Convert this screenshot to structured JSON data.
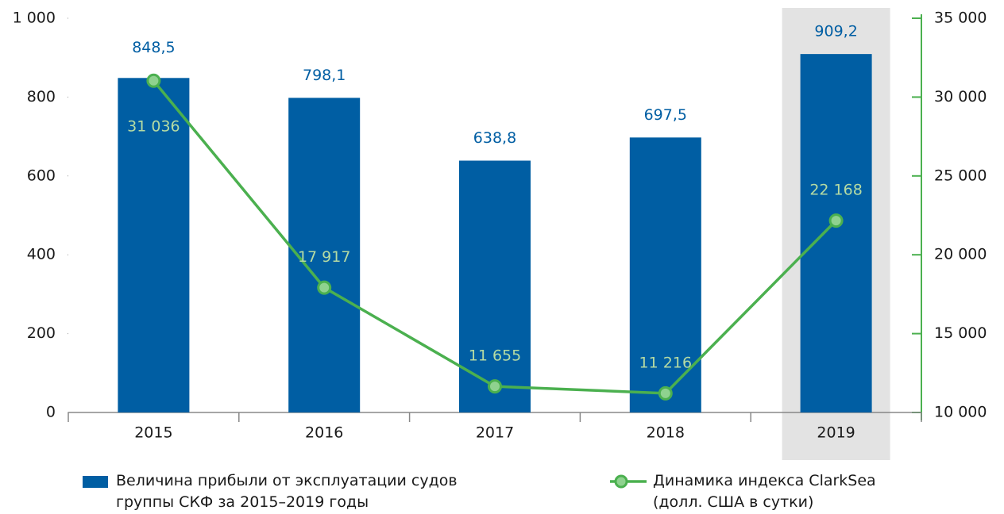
{
  "chart_data": {
    "type": "bar_line",
    "categories": [
      "2015",
      "2016",
      "2017",
      "2018",
      "2019"
    ],
    "highlight": "2019",
    "series": [
      {
        "name": "Величина прибыли от эксплуатации судов группы СКФ за 2015–2019 годы",
        "type": "bar",
        "color": "#005ea3",
        "values": [
          848.5,
          798.1,
          638.8,
          697.5,
          909.2
        ],
        "value_labels": [
          "848,5",
          "798,1",
          "638,8",
          "697,5",
          "909,2"
        ]
      },
      {
        "name": "Динамика индекса ClarkSea (долл. США в сутки)",
        "type": "line",
        "axis": "y2",
        "color": "#4bb04f",
        "values": [
          31036,
          17917,
          11655,
          11216,
          22168
        ],
        "value_labels": [
          "31 036",
          "17 917",
          "11 655",
          "11 216",
          "22 168"
        ]
      }
    ],
    "ylim": [
      0,
      1000
    ],
    "yticks": [
      0,
      200,
      400,
      600,
      800,
      {
        "value": 1000,
        "label": "1 000"
      }
    ],
    "y2lim": [
      10000,
      35000
    ],
    "y2ticks": [
      {
        "value": 10000,
        "label": "10 000"
      },
      {
        "value": 15000,
        "label": "15 000"
      },
      {
        "value": 20000,
        "label": "20 000"
      },
      {
        "value": 25000,
        "label": "25 000"
      },
      {
        "value": 30000,
        "label": "30 000"
      },
      {
        "value": 35000,
        "label": "35 000"
      }
    ]
  }
}
